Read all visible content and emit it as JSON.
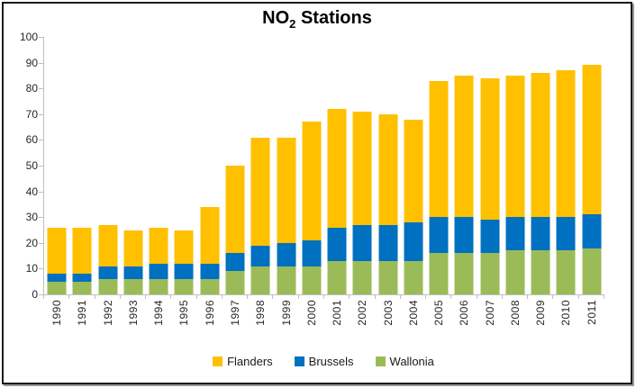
{
  "title_parts": {
    "prefix": "NO",
    "sub": "2",
    "suffix": " Stations"
  },
  "colors": {
    "flanders": "#FFC000",
    "brussels": "#0070C0",
    "wallonia": "#9BBB59",
    "axis": "#BFBFBF",
    "tick_text": "#262626",
    "title_text": "#000000"
  },
  "y_axis": {
    "min": 0,
    "max": 100,
    "step": 10,
    "ticks": [
      100,
      90,
      80,
      70,
      60,
      50,
      40,
      30,
      20,
      10,
      0
    ]
  },
  "legend": {
    "position": "bottom",
    "items": [
      {
        "label": "Flanders",
        "color": "#FFC000"
      },
      {
        "label": "Brussels",
        "color": "#0070C0"
      },
      {
        "label": "Wallonia",
        "color": "#9BBB59"
      }
    ]
  },
  "chart_data": {
    "type": "bar",
    "stacked": true,
    "title": "NO2 Stations",
    "xlabel": "",
    "ylabel": "",
    "ylim": [
      0,
      100
    ],
    "y_tick_step": 10,
    "grid": false,
    "legend_position": "bottom",
    "categories": [
      "1990",
      "1991",
      "1992",
      "1993",
      "1994",
      "1995",
      "1996",
      "1997",
      "1998",
      "1999",
      "2000",
      "2001",
      "2002",
      "2003",
      "2004",
      "2005",
      "2006",
      "2007",
      "2008",
      "2009",
      "2010",
      "2011"
    ],
    "series": [
      {
        "name": "Flanders",
        "color": "#FFC000",
        "values": [
          18,
          18,
          16,
          14,
          14,
          13,
          22,
          34,
          42,
          41,
          46,
          46,
          44,
          43,
          40,
          53,
          55,
          55,
          55,
          56,
          57,
          58
        ]
      },
      {
        "name": "Brussels",
        "color": "#0070C0",
        "values": [
          3,
          3,
          5,
          5,
          6,
          6,
          6,
          7,
          8,
          9,
          10,
          13,
          14,
          14,
          15,
          14,
          14,
          13,
          13,
          13,
          13,
          13
        ]
      },
      {
        "name": "Wallonia",
        "color": "#9BBB59",
        "values": [
          5,
          5,
          6,
          6,
          6,
          6,
          6,
          9,
          11,
          11,
          11,
          13,
          13,
          13,
          13,
          16,
          16,
          16,
          17,
          17,
          17,
          18
        ]
      }
    ],
    "totals": [
      26,
      26,
      27,
      25,
      26,
      25,
      34,
      50,
      61,
      61,
      67,
      72,
      71,
      70,
      68,
      83,
      85,
      84,
      85,
      86,
      87,
      89
    ],
    "stack_order_bottom_to_top": [
      "Wallonia",
      "Brussels",
      "Flanders"
    ]
  }
}
